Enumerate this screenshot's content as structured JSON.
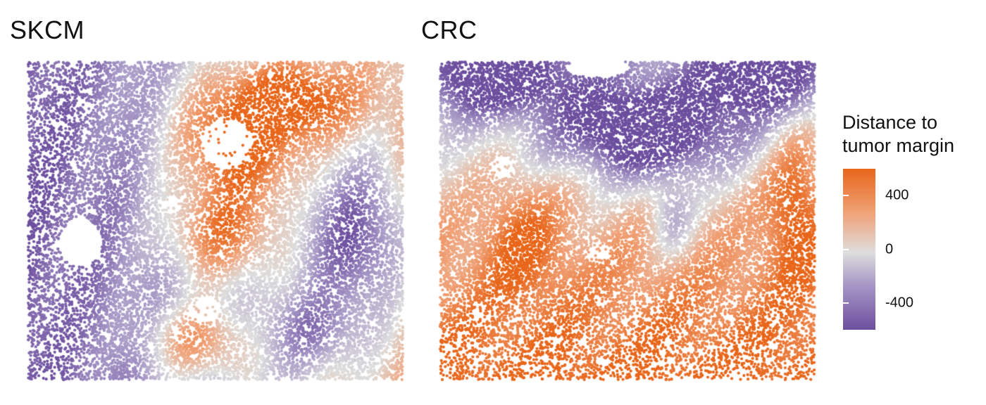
{
  "chart_data": [
    {
      "type": "scatter",
      "title": "SKCM",
      "xlabel": "",
      "ylabel": "",
      "color_variable": "Distance to tumor margin",
      "description_of_field": "spatial cell map; each point is a cell colored by signed distance to tumor margin"
    },
    {
      "type": "scatter",
      "title": "CRC",
      "xlabel": "",
      "ylabel": "",
      "color_variable": "Distance to tumor margin"
    }
  ],
  "legend": {
    "title_line1": "Distance to",
    "title_line2": "tumor margin",
    "ticks": [
      {
        "label": "400",
        "value": 400
      },
      {
        "label": "0",
        "value": 0
      },
      {
        "label": "-400",
        "value": -400
      }
    ],
    "range": [
      -600,
      600
    ],
    "colors": {
      "high": "#e8661a",
      "mid": "#dedede",
      "low": "#6d4f9f"
    }
  }
}
